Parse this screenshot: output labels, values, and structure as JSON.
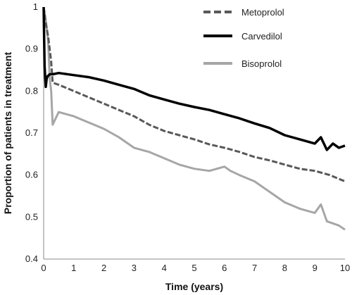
{
  "chart_data": {
    "type": "line",
    "xlabel": "Time (years)",
    "ylabel": "Proportion of patients in treatment",
    "xlim": [
      0,
      10
    ],
    "ylim": [
      0.4,
      1.0
    ],
    "x_ticks": [
      "0",
      "1",
      "2",
      "3",
      "4",
      "5",
      "6",
      "7",
      "8",
      "9",
      "10"
    ],
    "y_ticks": [
      "0.4",
      "0.5",
      "0.6",
      "0.7",
      "0.8",
      "0.9",
      "1"
    ],
    "grid": false,
    "legend_position": "top-right",
    "series": [
      {
        "name": "Metoprolol",
        "color": "#595959",
        "style": "dashed",
        "x": [
          0,
          0.05,
          0.1,
          0.15,
          0.2,
          0.25,
          0.3,
          0.5,
          1,
          1.5,
          2,
          2.5,
          3,
          3.5,
          4,
          4.5,
          5,
          5.5,
          6,
          6.5,
          7,
          7.5,
          8,
          8.5,
          9,
          9.5,
          10
        ],
        "y": [
          1.0,
          0.97,
          0.95,
          0.93,
          0.9,
          0.87,
          0.82,
          0.815,
          0.8,
          0.785,
          0.77,
          0.755,
          0.74,
          0.72,
          0.705,
          0.695,
          0.685,
          0.673,
          0.665,
          0.655,
          0.643,
          0.635,
          0.625,
          0.615,
          0.61,
          0.6,
          0.585
        ]
      },
      {
        "name": "Carvedilol",
        "color": "#000000",
        "style": "solid",
        "x": [
          0,
          0.03,
          0.07,
          0.1,
          0.13,
          0.2,
          0.3,
          0.5,
          1,
          1.5,
          2,
          2.5,
          3,
          3.5,
          4,
          4.5,
          5,
          5.5,
          6,
          6.5,
          7,
          7.5,
          8,
          8.5,
          9,
          9.2,
          9.4,
          9.6,
          9.8,
          10
        ],
        "y": [
          1.0,
          0.86,
          0.81,
          0.83,
          0.835,
          0.84,
          0.84,
          0.843,
          0.838,
          0.833,
          0.825,
          0.815,
          0.805,
          0.79,
          0.78,
          0.77,
          0.762,
          0.755,
          0.745,
          0.735,
          0.723,
          0.712,
          0.695,
          0.685,
          0.675,
          0.69,
          0.66,
          0.675,
          0.665,
          0.67
        ]
      },
      {
        "name": "Bisoprolol",
        "color": "#a6a6a6",
        "style": "solid",
        "x": [
          0,
          0.05,
          0.1,
          0.15,
          0.2,
          0.25,
          0.3,
          0.5,
          1,
          1.5,
          2,
          2.5,
          3,
          3.5,
          4,
          4.5,
          5,
          5.5,
          6,
          6.2,
          6.5,
          7,
          7.5,
          8,
          8.5,
          9,
          9.2,
          9.4,
          9.6,
          9.8,
          10
        ],
        "y": [
          1.0,
          0.98,
          0.95,
          0.92,
          0.83,
          0.8,
          0.72,
          0.75,
          0.74,
          0.725,
          0.71,
          0.69,
          0.665,
          0.655,
          0.64,
          0.625,
          0.615,
          0.61,
          0.62,
          0.61,
          0.6,
          0.585,
          0.56,
          0.535,
          0.52,
          0.51,
          0.53,
          0.49,
          0.485,
          0.48,
          0.47
        ]
      }
    ]
  }
}
